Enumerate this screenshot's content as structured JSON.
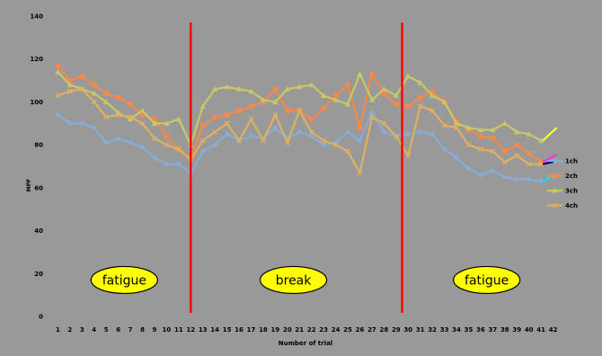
{
  "chart_data": {
    "type": "line",
    "xlabel": "Number of trial",
    "ylabel": "MPF",
    "x": [
      1,
      2,
      3,
      4,
      5,
      6,
      7,
      8,
      9,
      10,
      11,
      12,
      13,
      14,
      15,
      16,
      17,
      18,
      19,
      20,
      21,
      22,
      23,
      24,
      25,
      26,
      27,
      28,
      29,
      30,
      31,
      32,
      33,
      34,
      35,
      36,
      37,
      38,
      39,
      40,
      41
    ],
    "x_ticks": [
      1,
      2,
      3,
      4,
      5,
      6,
      7,
      8,
      9,
      10,
      11,
      12,
      13,
      14,
      15,
      16,
      17,
      18,
      19,
      20,
      21,
      22,
      23,
      24,
      25,
      26,
      27,
      28,
      29,
      30,
      31,
      32,
      33,
      34,
      35,
      36,
      37,
      38,
      39,
      40,
      41,
      42
    ],
    "xlim": [
      0.3,
      42.7
    ],
    "ylim": [
      0,
      140
    ],
    "y_ticks": [
      0,
      20,
      40,
      60,
      80,
      100,
      120,
      140
    ],
    "grid": false,
    "legend_position": "right",
    "series": [
      {
        "name": "1ch",
        "color": "#87acd6",
        "marker": "diamond",
        "values": [
          94,
          90,
          90,
          88,
          81,
          83,
          81,
          79,
          74,
          71,
          71,
          67,
          77,
          80,
          85,
          82,
          84,
          83,
          88,
          83,
          86,
          84,
          80,
          81,
          86,
          82,
          95,
          86,
          84,
          85,
          86,
          85,
          78,
          74,
          69,
          66,
          68,
          65,
          64,
          64,
          63
        ]
      },
      {
        "name": "2ch",
        "color": "#f2894e",
        "marker": "square",
        "values": [
          117,
          110,
          112,
          108,
          104,
          102,
          99,
          94,
          92,
          84,
          78,
          74,
          89,
          93,
          94,
          96,
          98,
          100,
          106,
          96,
          96,
          92,
          97,
          103,
          108,
          88,
          113,
          104,
          99,
          98,
          102,
          105,
          100,
          91,
          87,
          84,
          83,
          77,
          80,
          76,
          72
        ]
      },
      {
        "name": "3ch",
        "color": "#c8c864",
        "marker": "triangle",
        "values": [
          114,
          108,
          106,
          104,
          100,
          95,
          92,
          96,
          90,
          90,
          92,
          80,
          98,
          106,
          107,
          106,
          105,
          101,
          100,
          106,
          107,
          108,
          103,
          101,
          99,
          113,
          101,
          106,
          103,
          112,
          109,
          103,
          100,
          90,
          88,
          87,
          87,
          90,
          86,
          85,
          82
        ]
      },
      {
        "name": "4ch",
        "color": "#e0b060",
        "marker": "x",
        "values": [
          103,
          105,
          106,
          100,
          93,
          94,
          93,
          90,
          83,
          80,
          78,
          73,
          82,
          86,
          90,
          82,
          92,
          82,
          94,
          81,
          96,
          86,
          82,
          80,
          77,
          67,
          93,
          90,
          84,
          75,
          98,
          96,
          89,
          88,
          80,
          78,
          77,
          72,
          75,
          71,
          71
        ]
      }
    ],
    "legend_marks": [
      {
        "series": "1ch",
        "color": "#00e5ff"
      },
      {
        "series": "2ch",
        "color": "#ff33cc"
      },
      {
        "series": "3ch",
        "color": "#ffff33"
      },
      {
        "series": "4ch",
        "color": "#000080"
      }
    ],
    "dividers": [
      12,
      29.5
    ],
    "divider_color": "#ff0000",
    "annotations": [
      {
        "text": "fatigue",
        "x": 6.5,
        "y": 17,
        "fill": "#ffff00"
      },
      {
        "text": "break",
        "x": 20.5,
        "y": 17,
        "fill": "#ffff00"
      },
      {
        "text": "fatigue",
        "x": 36.5,
        "y": 17,
        "fill": "#ffff00"
      }
    ]
  }
}
